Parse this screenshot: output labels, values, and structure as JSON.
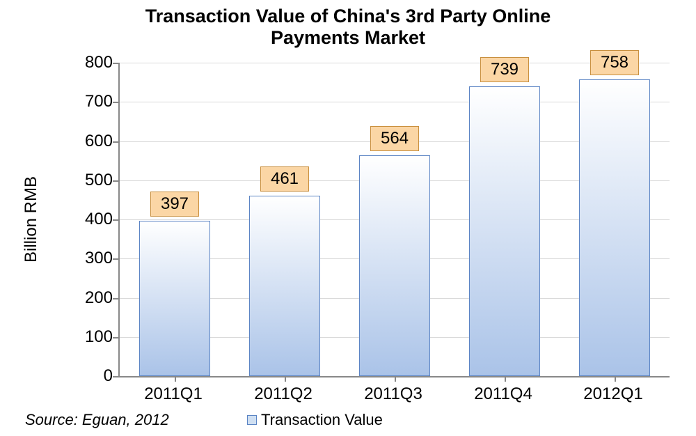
{
  "chart": {
    "type": "bar",
    "title_line1": "Transaction Value of China's 3rd Party Online",
    "title_line2": "Payments Market",
    "title_fontsize": 27,
    "title_weight": "bold",
    "title_color": "#000000",
    "ylabel": "Billion RMB",
    "label_fontsize": 24,
    "tick_fontsize": 24,
    "datalabel_fontsize": 24,
    "ylim_min": 0,
    "ylim_max": 800,
    "ytick_step": 100,
    "yticks": [
      0,
      100,
      200,
      300,
      400,
      500,
      600,
      700,
      800
    ],
    "grid_color": "#d9d9d9",
    "axis_color": "#888888",
    "background_color": "#ffffff",
    "bar_border_color": "#5b84c4",
    "bar_fill_top": "#ffffff",
    "bar_fill_bottom": "#aac3e8",
    "bar_width_ratio": 0.64,
    "datalabel_bg": "#fbd6a5",
    "datalabel_border": "#c88f3e",
    "legend_label": "Transaction Value",
    "legend_swatch_fill": "#cfdff2",
    "legend_swatch_border": "#5b84c4",
    "source_text": "Source: Eguan, 2012",
    "source_fontsize": 22,
    "legend_fontsize": 22,
    "categories": [
      "2011Q1",
      "2011Q2",
      "2011Q3",
      "2011Q4",
      "2012Q1"
    ],
    "values": [
      397,
      461,
      564,
      739,
      758
    ]
  }
}
